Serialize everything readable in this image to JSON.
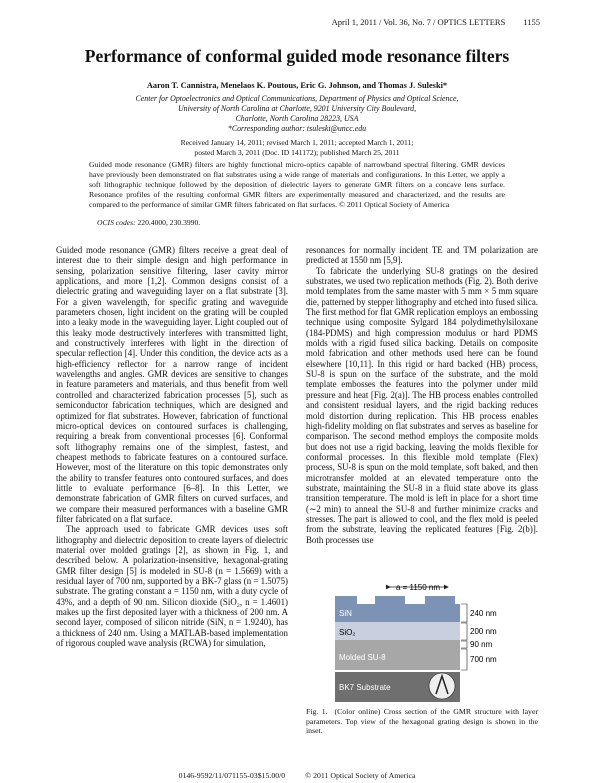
{
  "header": {
    "journal": "April 1, 2011 / Vol. 36, No. 7 / OPTICS LETTERS",
    "page": "1155"
  },
  "title": "Performance of conformal guided mode resonance filters",
  "authors": "Aaron T. Cannistra, Menelaos K. Poutous, Eric G. Johnson, and Thomas J. Suleski*",
  "affiliation": [
    "Center for Optoelectronics and Optical Communications, Department of Physics and Optical Science,",
    "University of North Carolina at Charlotte, 9201 University City Boulevard,",
    "Charlotte, North Carolina 28223, USA",
    "*Corresponding author: tsuleski@uncc.edu"
  ],
  "received": [
    "Received January 14, 2011; revised March 1, 2011; accepted March 1, 2011;",
    "posted March 3, 2011 (Doc. ID 141172); published March 25, 2011"
  ],
  "abstract": "Guided mode resonance (GMR) filters are highly functional micro-optics capable of narrowband spectral filtering. GMR devices have previously been demonstrated on flat substrates using a wide range of materials and configurations. In this Letter, we apply a soft lithographic technique followed by the deposition of dielectric layers to generate GMR filters on a concave lens surface. Resonance profiles of the resulting conformal GMR filters are experimentally measured and characterized, and the results are compared to the performance of similar GMR filters fabricated on flat surfaces.   © 2011 Optical Society of America",
  "ocis": {
    "label": "OCIS codes:",
    "codes": "220.4000, 230.3990."
  },
  "body": {
    "left": [
      "Guided mode resonance (GMR) filters receive a great deal of interest due to their simple design and high performance in sensing, polarization sensitive filtering, laser cavity mirror applications, and more [1,2]. Common designs consist of a dielectric grating and waveguiding layer on a flat substrate [3]. For a given wavelength, for specific grating and waveguide parameters chosen, light incident on the grating will be coupled into a leaky mode in the waveguiding layer. Light coupled out of this leaky mode destructively interferes with transmitted light, and constructively interferes with light in the direction of specular reflection [4]. Under this condition, the device acts as a high-efficiency reflector for a narrow range of incident wavelengths and angles. GMR devices are sensitive to changes in feature parameters and materials, and thus benefit from well controlled and characterized fabrication processes [5], such as semiconductor fabrication techniques, which are designed and optimized for flat substrates. However, fabrication of functional micro-optical devices on contoured surfaces is challenging, requiring a break from conventional processes [6]. Conformal soft lithography remains one of the simplest, fastest, and cheapest methods to fabricate features on a contoured surface. However, most of the literature on this topic demonstrates only the ability to transfer features onto contoured surfaces, and does little to evaluate performance [6–8]. In this Letter, we demonstrate fabrication of GMR filters on curved surfaces, and we compare their measured performances with a baseline GMR filter fabricated on a flat surface.",
      "The approach used to fabricate GMR devices uses soft lithography and dielectric deposition to create layers of dielectric material over molded gratings [2], as shown in Fig. 1, and described below. A polarization-insensitive, hexagonal-grating GMR filter design [5] is modeled in SU-8 (n = 1.5669) with a residual layer of 700 nm, supported by a BK-7 glass (n = 1.5075) substrate. The grating constant a = 1150 nm, with a duty cycle of 43%, and a depth of 90 nm. Silicon dioxide (SiO₂, n = 1.4601) makes up the first deposited layer with a thickness of 200 nm. A second layer, composed of silicon nitride (SiN, n = 1.9240), has a thickness of 240 nm. Using a MATLAB-based implementation of rigorous coupled wave analysis (RCWA) for simulation,"
    ],
    "right": [
      "resonances for normally incident TE and TM polarization are predicted at 1550 nm [5,9].",
      "To fabricate the underlying SU-8 gratings on the desired substrates, we used two replication methods (Fig. 2). Both derive mold templates from the same master with 5 mm × 5 mm square die, patterned by stepper lithography and etched into fused silica. The first method for flat GMR replication employs an embossing technique using composite Sylgard 184 polydimethylsiloxane (184-PDMS) and high compression modulus or hard PDMS molds with a rigid fused silica backing. Details on composite mold fabrication and other methods used here can be found elsewhere [10,11]. In this rigid or hard backed (HB) process, SU-8 is spun on the surface of the substrate, and the mold template embosses the features into the polymer under mild pressure and heat [Fig. 2(a)]. The HB process enables controlled and consistent residual layers, and the rigid backing reduces mold distortion during replication. This HB process enables high-fidelity molding on flat substrates and serves as baseline for comparison. The second method employs the composite molds but does not use a rigid backing, leaving the molds flexible for conformal processes. In this flexible mold template (Flex) process, SU-8 is spun on the mold template, soft baked, and then microtransfer molded at an elevated temperature onto the substrate, maintaining the SU-8 in a fluid state above its glass transition temperature. The mold is left in place for a short time (∼2 min) to anneal the SU-8 and further minimize cracks and stresses. The part is allowed to cool, and the flex mold is peeled from the substrate, leaving the replicated features [Fig. 2(b)]. Both processes use"
    ]
  },
  "figure": {
    "period": "a = 1150 nm",
    "sin": "SiN",
    "sio2": "SiO₂",
    "su8": "Molded SU-8",
    "bk7": "BK7 Substrate",
    "d240": "240 nm",
    "d200": "200 nm",
    "d90": "90 nm",
    "d700": "700 nm"
  },
  "caption": {
    "label": "Fig. 1.",
    "text": "(Color online) Cross section of the GMR structure with layer parameters. Top view of the hexagonal grating design is shown in the inset."
  },
  "footer": {
    "code": "0146-9592/11/071155-03$15.00/0",
    "copyright": "© 2011 Optical Society of America"
  }
}
